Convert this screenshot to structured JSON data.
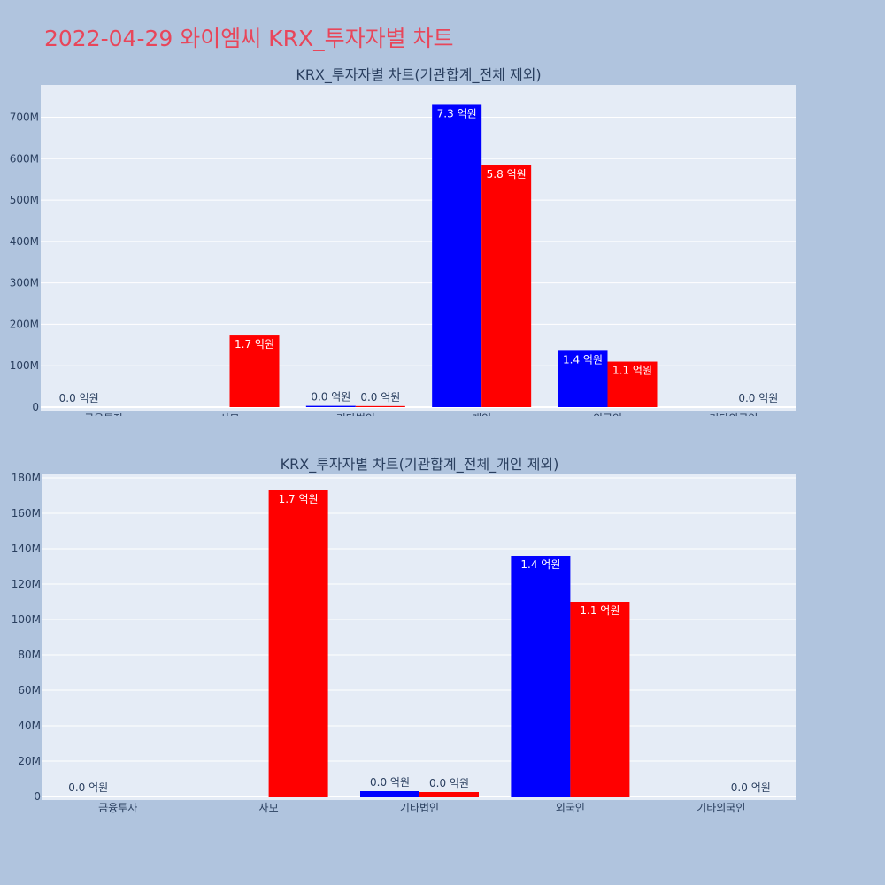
{
  "page": {
    "title": "2022-04-29 와이엠씨 KRX_투자자별 차트"
  },
  "colors": {
    "background": "#b0c4de",
    "plot_bg": "#e5ecf6",
    "grid": "#ffffff",
    "title": "#e8465a",
    "series_blue": "#0000ff",
    "series_red": "#ff0000"
  },
  "chart_data": [
    {
      "type": "bar",
      "title": "KRX_투자자별 차트(기관합계_전체 제외)",
      "categories": [
        "금융투자",
        "사모",
        "기타법인",
        "개인",
        "외국인",
        "기타외국인"
      ],
      "series": [
        {
          "color": "#0000ff",
          "values": [
            0,
            0,
            3000000,
            730000000,
            136000000,
            0
          ],
          "labels": [
            "0.0 억원",
            "",
            "0.0 억원",
            "7.3 억원",
            "1.4 억원",
            ""
          ]
        },
        {
          "color": "#ff0000",
          "values": [
            0,
            173000000,
            2500000,
            584000000,
            110000000,
            0
          ],
          "labels": [
            "",
            "1.7 억원",
            "0.0 억원",
            "5.8 억원",
            "1.1 억원",
            "0.0 억원"
          ]
        }
      ],
      "yticks": [
        0,
        100000000,
        200000000,
        300000000,
        400000000,
        500000000,
        600000000,
        700000000
      ],
      "ytick_labels": [
        "0",
        "100M",
        "200M",
        "300M",
        "400M",
        "500M",
        "600M",
        "700M"
      ],
      "ylim": [
        0,
        778000000
      ],
      "grid": true,
      "barmode": "group"
    },
    {
      "type": "bar",
      "title": "KRX_투자자별 차트(기관합계_전체_개인 제외)",
      "categories": [
        "금융투자",
        "사모",
        "기타법인",
        "외국인",
        "기타외국인"
      ],
      "series": [
        {
          "color": "#0000ff",
          "values": [
            0,
            0,
            3000000,
            136000000,
            0
          ],
          "labels": [
            "0.0 억원",
            "",
            "0.0 억원",
            "1.4 억원",
            ""
          ]
        },
        {
          "color": "#ff0000",
          "values": [
            0,
            173000000,
            2500000,
            110000000,
            0
          ],
          "labels": [
            "",
            "1.7 억원",
            "0.0 억원",
            "1.1 억원",
            "0.0 억원"
          ]
        }
      ],
      "yticks": [
        0,
        20000000,
        40000000,
        60000000,
        80000000,
        100000000,
        120000000,
        140000000,
        160000000,
        180000000
      ],
      "ytick_labels": [
        "0",
        "20M",
        "40M",
        "60M",
        "80M",
        "100M",
        "120M",
        "140M",
        "160M",
        "180M"
      ],
      "ylim": [
        0,
        182000000
      ],
      "grid": true,
      "barmode": "group"
    }
  ]
}
